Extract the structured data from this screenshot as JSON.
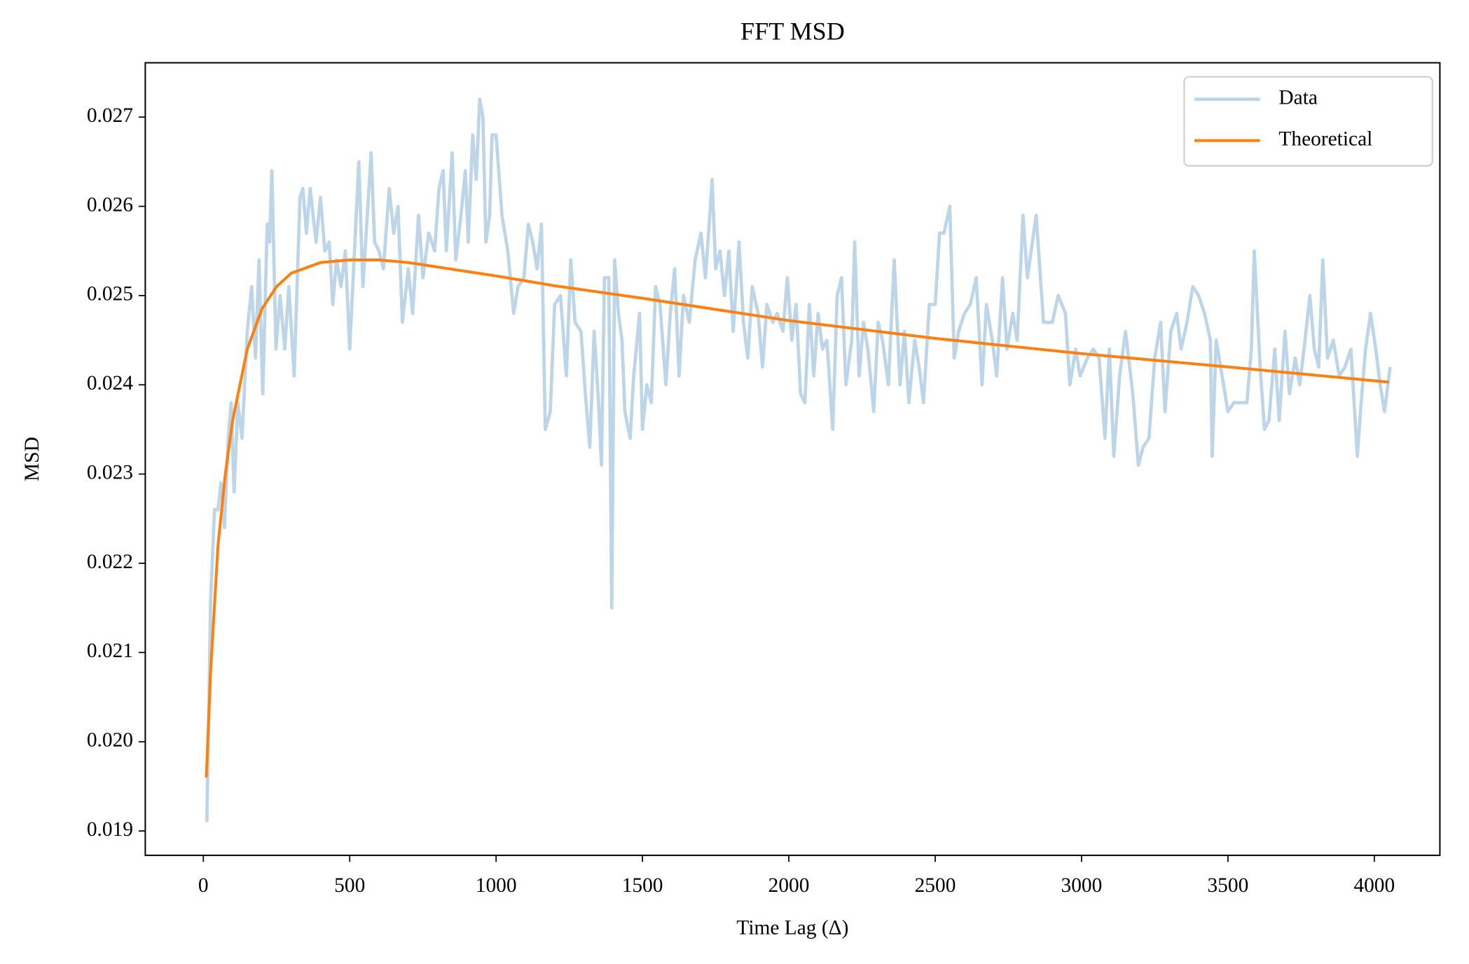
{
  "chart_data": {
    "type": "line",
    "title": "FFT MSD",
    "xlabel": "Time Lag (Δ)",
    "ylabel": "MSD",
    "xlim": [
      -198.4,
      4224
    ],
    "ylim": [
      0.018727,
      0.027609
    ],
    "xticks": [
      0,
      500,
      1000,
      1500,
      2000,
      2500,
      3000,
      3500,
      4000
    ],
    "yticks": [
      0.019,
      {
        "value": 0.02,
        "label": "0.020"
      },
      0.021,
      0.022,
      0.023,
      0.024,
      0.025,
      0.026,
      0.027
    ],
    "legend": "upper right",
    "series": [
      {
        "name": "Data",
        "color": "#bcd5e8",
        "x": [
          12,
          25,
          38,
          50,
          60,
          72,
          85,
          95,
          105,
          118,
          132,
          150,
          165,
          178,
          190,
          203,
          218,
          226,
          234,
          248,
          262,
          278,
          292,
          310,
          330,
          340,
          352,
          365,
          385,
          400,
          415,
          430,
          442,
          455,
          470,
          485,
          500,
          531,
          545,
          573,
          585,
          600,
          615,
          635,
          650,
          665,
          680,
          700,
          715,
          735,
          750,
          770,
          790,
          805,
          819,
          830,
          850,
          862,
          880,
          895,
          905,
          920,
          932,
          944,
          955,
          965,
          978,
          986,
          1000,
          1020,
          1040,
          1060,
          1075,
          1095,
          1110,
          1125,
          1140,
          1155,
          1168,
          1185,
          1200,
          1220,
          1240,
          1255,
          1270,
          1290,
          1305,
          1320,
          1335,
          1350,
          1360,
          1370,
          1385,
          1395,
          1405,
          1418,
          1430,
          1440,
          1458,
          1470,
          1490,
          1500,
          1515,
          1530,
          1545,
          1560,
          1580,
          1595,
          1610,
          1625,
          1640,
          1660,
          1680,
          1700,
          1715,
          1730,
          1738,
          1750,
          1765,
          1780,
          1795,
          1810,
          1830,
          1845,
          1860,
          1875,
          1895,
          1910,
          1925,
          1945,
          1960,
          1980,
          1995,
          2010,
          2025,
          2040,
          2055,
          2070,
          2085,
          2100,
          2115,
          2130,
          2150,
          2165,
          2180,
          2195,
          2215,
          2225,
          2240,
          2255,
          2270,
          2290,
          2305,
          2320,
          2340,
          2360,
          2380,
          2395,
          2410,
          2430,
          2445,
          2460,
          2480,
          2500,
          2515,
          2530,
          2550,
          2565,
          2580,
          2600,
          2620,
          2640,
          2660,
          2675,
          2695,
          2710,
          2730,
          2745,
          2765,
          2780,
          2800,
          2815,
          2845,
          2870,
          2900,
          2920,
          2945,
          2960,
          2980,
          2995,
          3020,
          3040,
          3060,
          3080,
          3095,
          3110,
          3130,
          3150,
          3175,
          3194,
          3210,
          3230,
          3250,
          3270,
          3285,
          3305,
          3325,
          3340,
          3360,
          3380,
          3400,
          3420,
          3440,
          3446,
          3460,
          3480,
          3500,
          3520,
          3545,
          3565,
          3580,
          3590,
          3610,
          3625,
          3640,
          3660,
          3675,
          3695,
          3710,
          3730,
          3745,
          3760,
          3780,
          3795,
          3810,
          3824,
          3840,
          3860,
          3880,
          3900,
          3920,
          3942,
          3955,
          3970,
          3987,
          4005,
          4020,
          4035,
          4054
        ],
        "values": [
          0.0191,
          0.0216,
          0.0226,
          0.0226,
          0.0229,
          0.0224,
          0.0234,
          0.0238,
          0.0228,
          0.0238,
          0.0234,
          0.0246,
          0.0251,
          0.0243,
          0.0254,
          0.0239,
          0.0258,
          0.0256,
          0.0264,
          0.0244,
          0.025,
          0.0244,
          0.0251,
          0.0241,
          0.0261,
          0.0262,
          0.0257,
          0.0262,
          0.0256,
          0.0261,
          0.0255,
          0.0256,
          0.0249,
          0.0254,
          0.0251,
          0.0255,
          0.0244,
          0.0265,
          0.0251,
          0.0266,
          0.0256,
          0.0255,
          0.0253,
          0.0262,
          0.0257,
          0.026,
          0.0247,
          0.0253,
          0.0248,
          0.0259,
          0.0252,
          0.0257,
          0.0255,
          0.0262,
          0.0264,
          0.0255,
          0.0266,
          0.0254,
          0.0259,
          0.0264,
          0.0256,
          0.0268,
          0.0263,
          0.0272,
          0.027,
          0.0256,
          0.0259,
          0.0268,
          0.0268,
          0.0259,
          0.0255,
          0.0248,
          0.0251,
          0.0252,
          0.0258,
          0.0256,
          0.0253,
          0.0258,
          0.0235,
          0.0237,
          0.0249,
          0.025,
          0.0241,
          0.0254,
          0.0247,
          0.0246,
          0.0239,
          0.0233,
          0.0246,
          0.0238,
          0.0231,
          0.0252,
          0.0252,
          0.0215,
          0.0254,
          0.0248,
          0.0245,
          0.0237,
          0.0234,
          0.0241,
          0.0248,
          0.0235,
          0.024,
          0.0238,
          0.0251,
          0.0249,
          0.024,
          0.0248,
          0.0253,
          0.0241,
          0.025,
          0.0247,
          0.0254,
          0.0257,
          0.0252,
          0.0259,
          0.0263,
          0.0253,
          0.0255,
          0.025,
          0.0255,
          0.0246,
          0.0256,
          0.0247,
          0.0243,
          0.0251,
          0.0248,
          0.0242,
          0.0249,
          0.0247,
          0.0248,
          0.0246,
          0.0252,
          0.0245,
          0.0249,
          0.0239,
          0.0238,
          0.0249,
          0.0241,
          0.0248,
          0.0244,
          0.0245,
          0.0235,
          0.025,
          0.0252,
          0.024,
          0.0245,
          0.0256,
          0.0241,
          0.0247,
          0.0244,
          0.0237,
          0.0247,
          0.0245,
          0.024,
          0.0254,
          0.024,
          0.0246,
          0.0238,
          0.0245,
          0.0242,
          0.0238,
          0.0249,
          0.0249,
          0.0257,
          0.0257,
          0.026,
          0.0243,
          0.0246,
          0.0248,
          0.0249,
          0.0252,
          0.024,
          0.0249,
          0.0245,
          0.0241,
          0.0252,
          0.0244,
          0.0248,
          0.0245,
          0.0259,
          0.0252,
          0.0259,
          0.0247,
          0.0247,
          0.025,
          0.0248,
          0.024,
          0.0244,
          0.0241,
          0.0243,
          0.0244,
          0.0243,
          0.0234,
          0.0244,
          0.0232,
          0.0241,
          0.0246,
          0.0239,
          0.0231,
          0.0233,
          0.0234,
          0.0243,
          0.0247,
          0.0237,
          0.0246,
          0.0248,
          0.0244,
          0.0247,
          0.0251,
          0.025,
          0.0248,
          0.0245,
          0.0232,
          0.0245,
          0.0241,
          0.0237,
          0.0238,
          0.0238,
          0.0238,
          0.0244,
          0.0255,
          0.0242,
          0.0235,
          0.0236,
          0.0244,
          0.0236,
          0.0246,
          0.0239,
          0.0243,
          0.024,
          0.0244,
          0.025,
          0.0244,
          0.0242,
          0.0254,
          0.0243,
          0.0245,
          0.0241,
          0.0242,
          0.0244,
          0.0232,
          0.0238,
          0.0244,
          0.0248,
          0.0244,
          0.024,
          0.0237,
          0.0242
        ]
      },
      {
        "name": "Theoretical",
        "color": "#ff7f0e",
        "x": [
          10,
          25,
          50,
          75,
          100,
          150,
          200,
          250,
          300,
          400,
          500,
          600,
          700,
          800,
          1000,
          1200,
          1500,
          2000,
          2500,
          3000,
          3500,
          4050
        ],
        "values": [
          0.0196,
          0.0208,
          0.0222,
          0.023,
          0.0236,
          0.0244,
          0.02485,
          0.0251,
          0.02525,
          0.02537,
          0.0254,
          0.0254,
          0.02537,
          0.02532,
          0.02522,
          0.02511,
          0.02497,
          0.02472,
          0.02452,
          0.02435,
          0.0242,
          0.02403
        ]
      }
    ]
  }
}
